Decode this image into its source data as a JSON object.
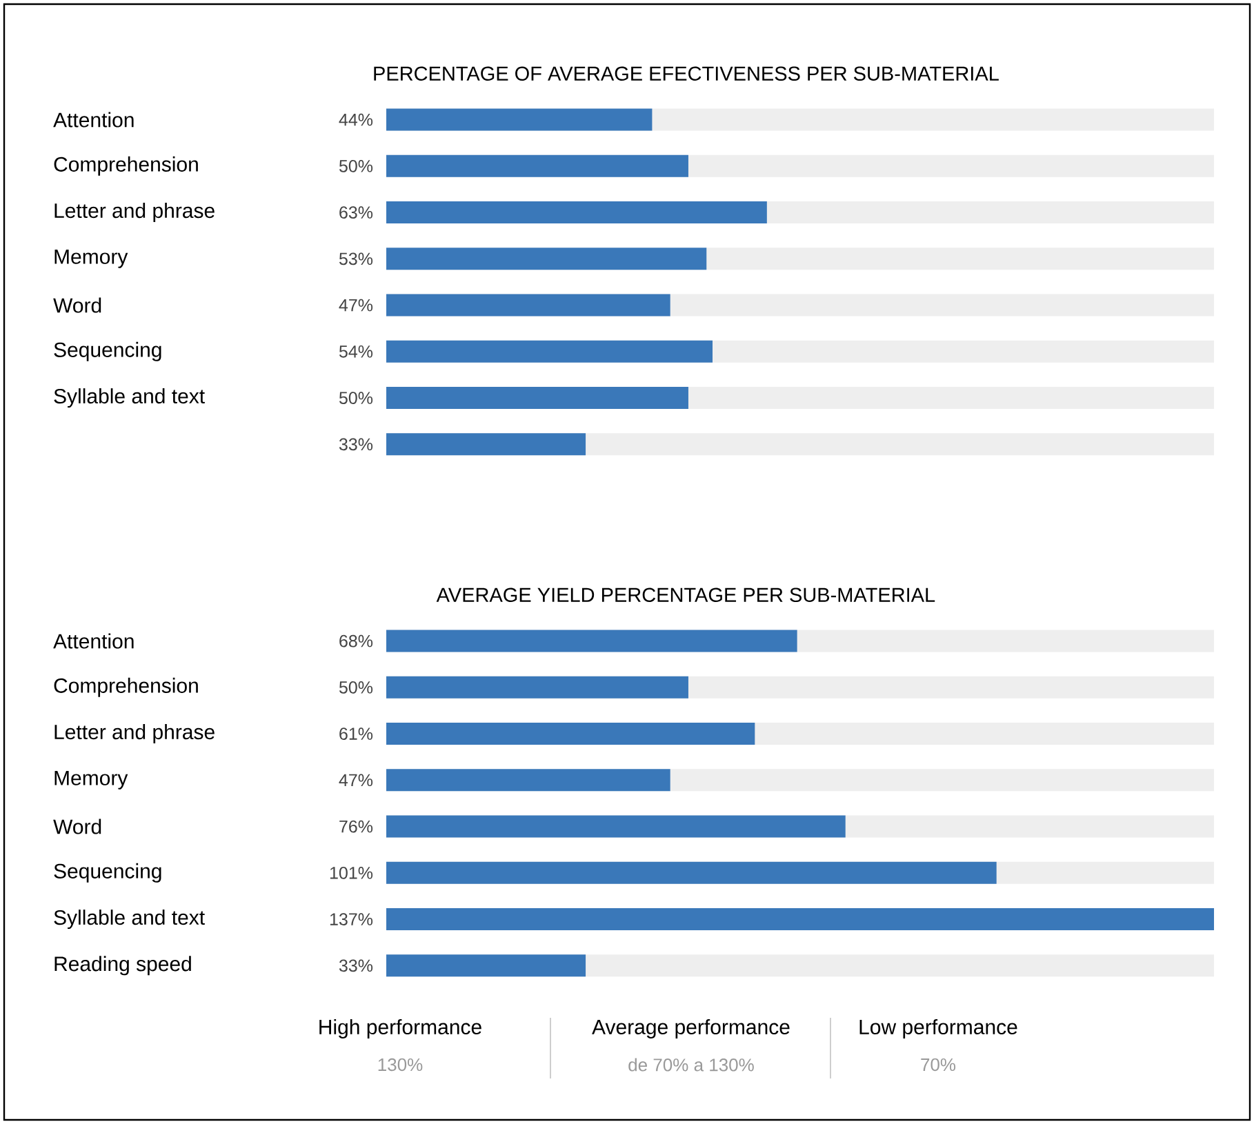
{
  "chart_data": [
    {
      "type": "bar",
      "orientation": "horizontal",
      "title": "PERCENTAGE OF AVERAGE EFECTIVENESS PER SUB-MATERIAL",
      "categories": [
        "Attention",
        "Comprehension",
        "Letter and phrase",
        "Memory",
        "Word",
        "Sequencing",
        "Syllable and text",
        null
      ],
      "values": [
        44,
        50,
        63,
        53,
        47,
        54,
        50,
        33
      ],
      "value_labels": [
        "44%",
        "50%",
        "63%",
        "53%",
        "47%",
        "54%",
        "50%",
        "33%"
      ],
      "color": "#3a78b9"
    },
    {
      "type": "bar",
      "orientation": "horizontal",
      "title": "AVERAGE YIELD PERCENTAGE PER SUB-MATERIAL",
      "categories": [
        "Attention",
        "Comprehension",
        "Letter and phrase",
        "Memory",
        "Word",
        "Sequencing",
        "Syllable and text",
        "Reading speed"
      ],
      "values": [
        68,
        50,
        61,
        47,
        76,
        101,
        137,
        33
      ],
      "value_labels": [
        "68%",
        "50%",
        "61%",
        "47%",
        "76%",
        "101%",
        "137%",
        "33%"
      ],
      "color": "#3a78b9",
      "annotations": [
        "High performance",
        "130%",
        "Average performance",
        "de 70% a 130%",
        "Low performance",
        "70%"
      ]
    }
  ]
}
